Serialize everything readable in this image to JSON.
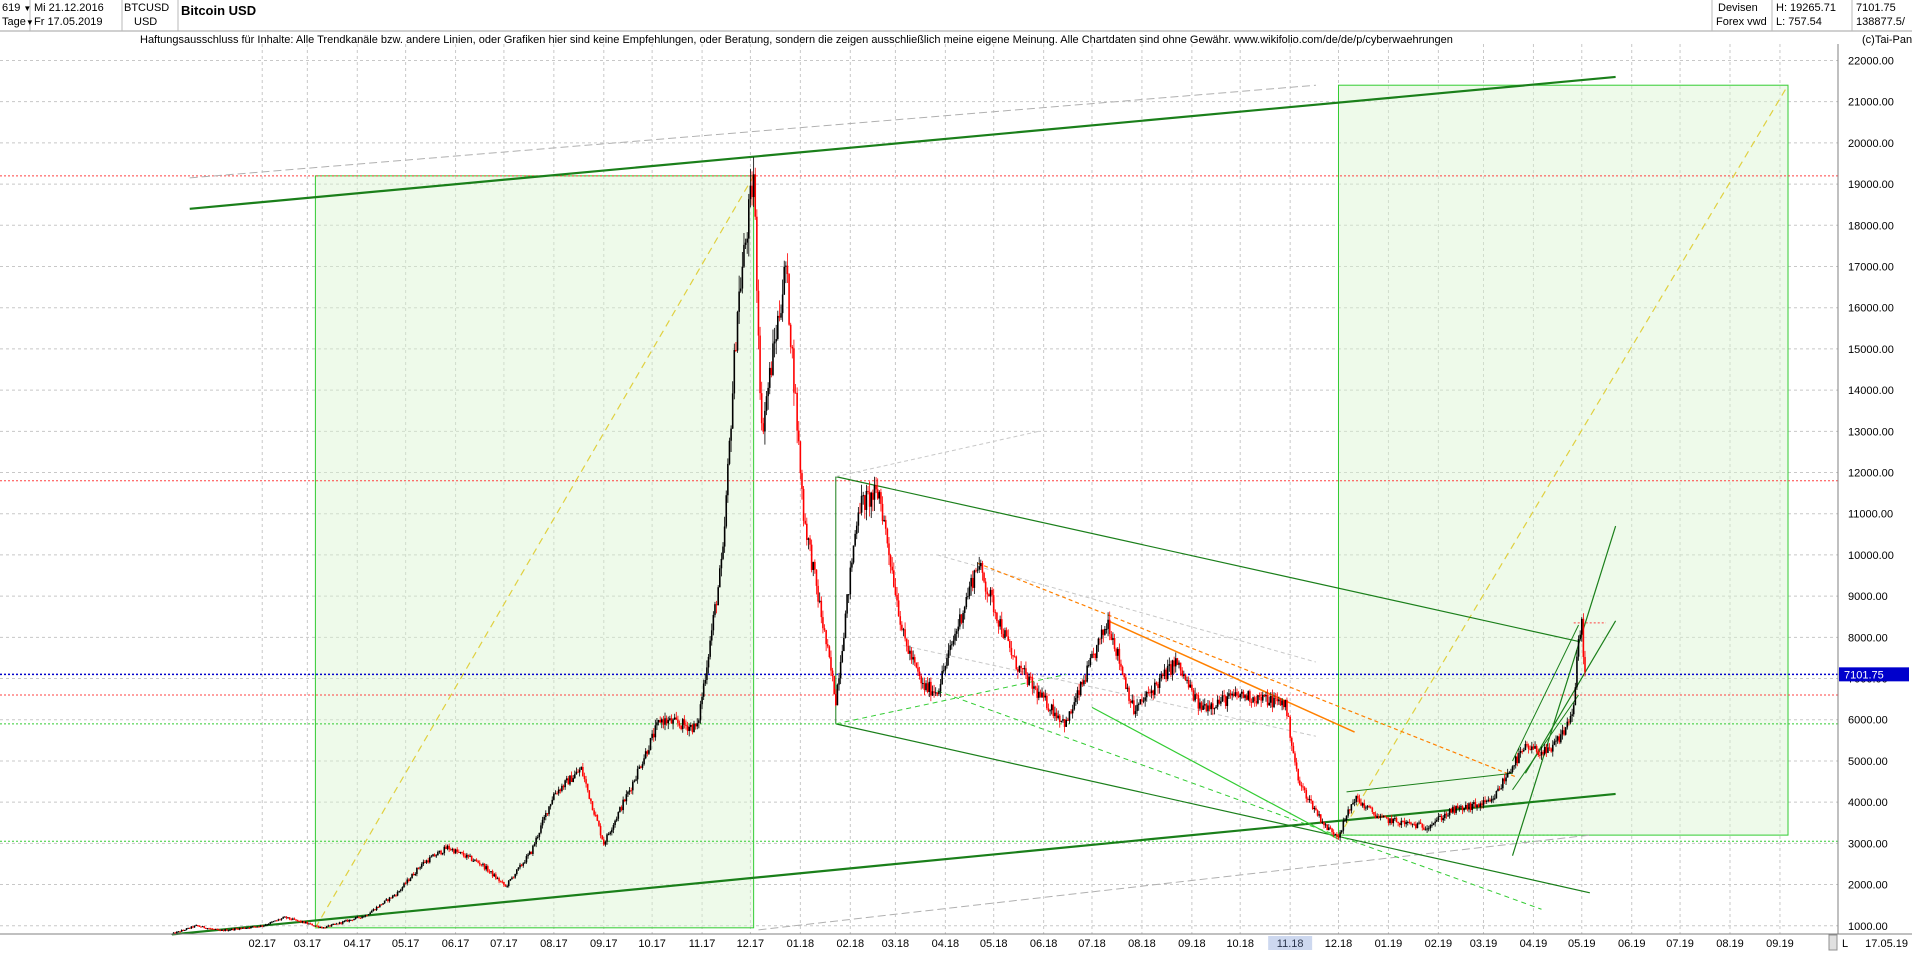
{
  "header": {
    "count": "619",
    "period": "Tage",
    "date_from": "Mi 21.12.2016",
    "date_to": "Fr 17.05.2019",
    "symbol": "BTCUSD",
    "currency": "USD",
    "title": "Bitcoin USD",
    "market": "Devisen",
    "venue": "Forex vwd",
    "high_label": "H: 19265.71",
    "low_label": "L: 757.54",
    "last_value": "7101.75",
    "volume_value": "138877.5/",
    "copyright": "(c)Tai-Pan"
  },
  "disclaimer": "Haftungsausschluss für Inhalte: Alle Trendkanäle bzw. andere Linien, oder Grafiken hier sind keine Empfehlungen, oder Beratung, sondern die zeigen ausschließlich meine eigene Meinung. Alle Chartdaten sind ohne Gewähr.  www.wikifolio.com/de/de/p/cyberwaehrungen",
  "colors": {
    "up_candle": "#000000",
    "down_candle": "#ff0000",
    "trend_line": "#1a7f1a",
    "light_green": "#33cc33",
    "box_fill": "#d9f5d0",
    "price_marker": "#0000cc",
    "orange": "#ff8000",
    "yellow": "#e0d040"
  },
  "chart_data": {
    "type": "candlestick",
    "title": "Bitcoin USD",
    "y_axis_ticks": [
      "1000.00",
      "2000.00",
      "3000.00",
      "4000.00",
      "5000.00",
      "6000.00",
      "7000.00",
      "8000.00",
      "9000.00",
      "10000.00",
      "11000.00",
      "12000.00",
      "13000.00",
      "14000.00",
      "15000.00",
      "16000.00",
      "17000.00",
      "18000.00",
      "19000.00",
      "20000.00",
      "21000.00",
      "22000.00"
    ],
    "x_axis_ticks": [
      "02.17",
      "03.17",
      "04.17",
      "05.17",
      "06.17",
      "07.17",
      "08.17",
      "09.17",
      "10.17",
      "11.17",
      "12.17",
      "01.18",
      "02.18",
      "03.18",
      "04.18",
      "05.18",
      "06.18",
      "07.18",
      "08.18",
      "09.18",
      "10.18",
      "11.18",
      "12.18",
      "01.19",
      "02.19",
      "03.19",
      "04.19",
      "05.19",
      "06.19",
      "07.19",
      "08.19",
      "09.19"
    ],
    "x_axis_end_label": "17.05.19",
    "y_range": [
      800,
      22400
    ],
    "last_price_label": "7101.75",
    "last_price": 7101.75,
    "high": 19265.71,
    "low": 757.54,
    "price_anchors": [
      [
        "2016-12-21",
        800
      ],
      [
        "2017-01-05",
        1000
      ],
      [
        "2017-01-20",
        880
      ],
      [
        "2017-02-15",
        1000
      ],
      [
        "2017-03-01",
        1200
      ],
      [
        "2017-03-25",
        950
      ],
      [
        "2017-04-20",
        1250
      ],
      [
        "2017-05-10",
        1800
      ],
      [
        "2017-05-25",
        2500
      ],
      [
        "2017-06-10",
        2900
      ],
      [
        "2017-07-01",
        2500
      ],
      [
        "2017-07-16",
        1950
      ],
      [
        "2017-08-01",
        2800
      ],
      [
        "2017-08-15",
        4200
      ],
      [
        "2017-09-01",
        4800
      ],
      [
        "2017-09-15",
        3000
      ],
      [
        "2017-10-01",
        4300
      ],
      [
        "2017-10-20",
        6000
      ],
      [
        "2017-11-12",
        5800
      ],
      [
        "2017-11-28",
        10000
      ],
      [
        "2017-12-07",
        16000
      ],
      [
        "2017-12-17",
        19200
      ],
      [
        "2017-12-22",
        13000
      ],
      [
        "2018-01-06",
        17000
      ],
      [
        "2018-01-17",
        11000
      ],
      [
        "2018-02-06",
        6500
      ],
      [
        "2018-02-20",
        11200
      ],
      [
        "2018-03-05",
        11500
      ],
      [
        "2018-03-20",
        8000
      ],
      [
        "2018-04-01",
        6800
      ],
      [
        "2018-04-10",
        6700
      ],
      [
        "2018-05-05",
        9800
      ],
      [
        "2018-05-28",
        7400
      ],
      [
        "2018-06-12",
        6600
      ],
      [
        "2018-06-29",
        5900
      ],
      [
        "2018-07-25",
        8400
      ],
      [
        "2018-08-10",
        6200
      ],
      [
        "2018-09-05",
        7400
      ],
      [
        "2018-09-20",
        6300
      ],
      [
        "2018-10-15",
        6600
      ],
      [
        "2018-11-12",
        6400
      ],
      [
        "2018-11-20",
        4500
      ],
      [
        "2018-12-07",
        3400
      ],
      [
        "2018-12-15",
        3200
      ],
      [
        "2018-12-25",
        4100
      ],
      [
        "2019-01-10",
        3600
      ],
      [
        "2019-02-07",
        3400
      ],
      [
        "2019-02-24",
        3800
      ],
      [
        "2019-03-20",
        4000
      ],
      [
        "2019-04-02",
        4900
      ],
      [
        "2019-04-10",
        5300
      ],
      [
        "2019-04-25",
        5200
      ],
      [
        "2019-05-05",
        5800
      ],
      [
        "2019-05-10",
        6300
      ],
      [
        "2019-05-13",
        7900
      ],
      [
        "2019-05-15",
        8300
      ],
      [
        "2019-05-17",
        7101.75
      ]
    ],
    "horizontal_levels": [
      {
        "price": 19200,
        "style": "dotted",
        "color": "#ff4040"
      },
      {
        "price": 11800,
        "style": "dotted",
        "color": "#ff4040"
      },
      {
        "price": 7101.75,
        "style": "dotted",
        "color": "#0000cc"
      },
      {
        "price": 6600,
        "style": "dotted",
        "color": "#ff4040"
      },
      {
        "price": 5900,
        "style": "dotted",
        "color": "#33cc33"
      },
      {
        "price": 3050,
        "style": "dotted",
        "color": "#33cc33"
      }
    ]
  }
}
